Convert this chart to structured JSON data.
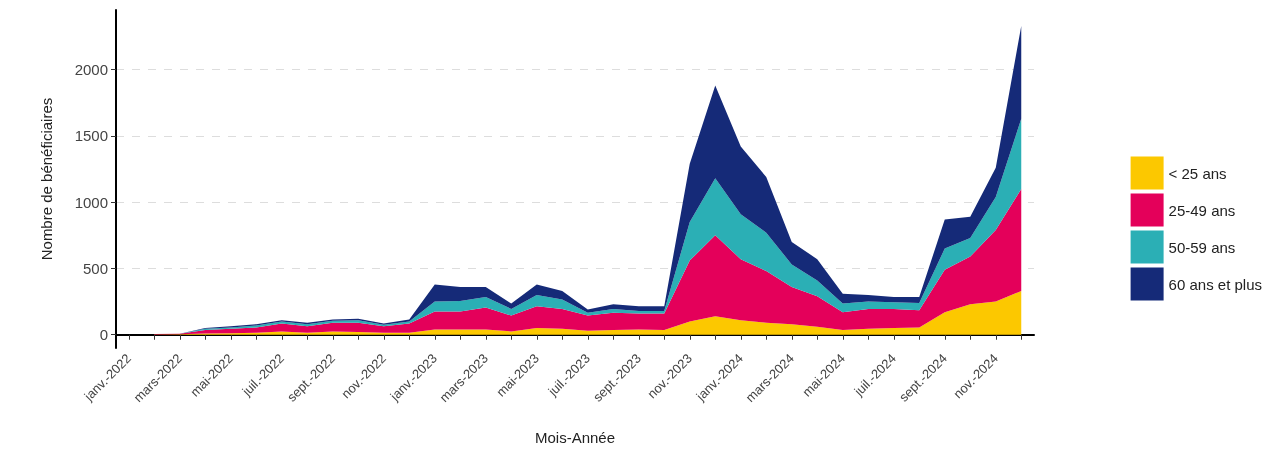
{
  "chart_data": {
    "type": "area",
    "xlabel": "Mois-Année",
    "ylabel": "Nombre de bénéficiaires",
    "categories": [
      "janv.-2022",
      null,
      "mars-2022",
      null,
      "mai-2022",
      null,
      "juil.-2022",
      null,
      "sept.-2022",
      null,
      "nov.-2022",
      null,
      "janv.-2023",
      null,
      "mars-2023",
      null,
      "mai-2023",
      null,
      "juil.-2023",
      null,
      "sept.-2023",
      null,
      "nov.-2023",
      null,
      "janv.-2024",
      null,
      "mars-2024",
      null,
      "mai-2024",
      null,
      "juil.-2024",
      null,
      "sept.-2024",
      null,
      "nov.-2024",
      null
    ],
    "stacked": true,
    "series": [
      {
        "name": "< 25 ans",
        "color": "#fcc800",
        "values": [
          null,
          2,
          3,
          10,
          12,
          15,
          25,
          15,
          25,
          20,
          15,
          15,
          40,
          40,
          40,
          25,
          50,
          45,
          30,
          35,
          40,
          35,
          100,
          140,
          110,
          90,
          80,
          60,
          35,
          45,
          50,
          55,
          170,
          230,
          250,
          330
        ]
      },
      {
        "name": "25-49 ans",
        "color": "#e4005a",
        "values": [
          null,
          3,
          5,
          25,
          33,
          40,
          60,
          50,
          65,
          70,
          50,
          70,
          135,
          135,
          165,
          120,
          165,
          150,
          115,
          130,
          120,
          125,
          460,
          610,
          460,
          390,
          280,
          230,
          135,
          150,
          145,
          130,
          320,
          360,
          540,
          770
        ]
      },
      {
        "name": "50-59 ans",
        "color": "#2bafb5",
        "values": [
          null,
          0,
          0,
          10,
          10,
          15,
          15,
          15,
          15,
          20,
          10,
          15,
          75,
          80,
          80,
          50,
          85,
          70,
          20,
          30,
          20,
          20,
          290,
          430,
          340,
          290,
          170,
          120,
          65,
          55,
          50,
          55,
          160,
          140,
          250,
          530
        ]
      },
      {
        "name": "60 ans et plus",
        "color": "#152a78",
        "values": [
          null,
          0,
          0,
          5,
          10,
          10,
          10,
          10,
          10,
          10,
          10,
          15,
          130,
          105,
          75,
          40,
          80,
          65,
          25,
          35,
          35,
          35,
          440,
          700,
          510,
          420,
          170,
          160,
          75,
          50,
          40,
          45,
          220,
          160,
          220,
          700
        ]
      }
    ],
    "ylim": [
      -100,
      2450
    ],
    "yticks": [
      0,
      500,
      1000,
      1500,
      2000
    ],
    "grid": "y",
    "legend": "right"
  }
}
